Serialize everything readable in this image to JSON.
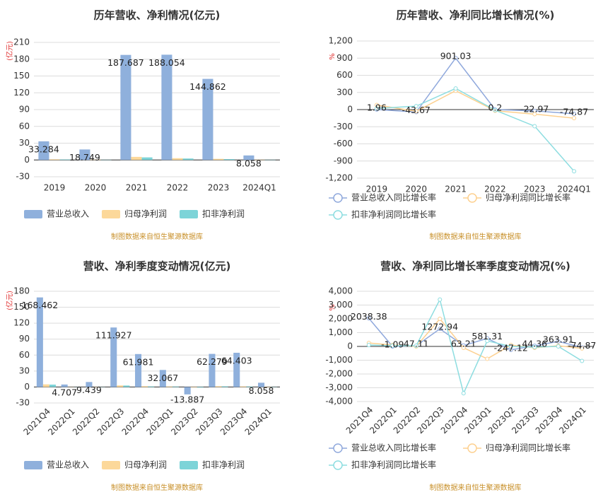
{
  "chart_data": [
    {
      "type": "bar",
      "title": "历年营收、净利情况(亿元)",
      "unit": "(亿元)",
      "categories": [
        "2019",
        "2020",
        "2021",
        "2022",
        "2023",
        "2024Q1"
      ],
      "series": [
        {
          "name": "营业总收入",
          "color": "#8fb0dc",
          "data_labels": true,
          "values": [
            33.284,
            18.749,
            187.687,
            188.054,
            144.862,
            8.058
          ]
        },
        {
          "name": "归母净利润",
          "color": "#fcd89a",
          "values": [
            1.2,
            0.6,
            5.5,
            3.2,
            2.0,
            0.5
          ]
        },
        {
          "name": "扣非净利润",
          "color": "#7dd4d8",
          "values": [
            0.9,
            0.4,
            4.6,
            2.6,
            1.5,
            0.4
          ]
        }
      ],
      "ylim": [
        -30,
        210
      ],
      "yticks": [
        -30,
        0,
        30,
        60,
        90,
        120,
        150,
        180,
        210
      ],
      "grid": true,
      "source": "制图数据来自恒生聚源数据库"
    },
    {
      "type": "line",
      "title": "历年营收、净利同比增长情况(%)",
      "unit": "%",
      "categories": [
        "2019",
        "2020",
        "2021",
        "2022",
        "2023",
        "2024Q1"
      ],
      "series": [
        {
          "name": "营业总收入同比增长率",
          "color": "#8fa8dc",
          "data_labels": true,
          "values": [
            1.96,
            -43.67,
            901.03,
            0.2,
            -22.97,
            -74.87
          ]
        },
        {
          "name": "归母净利润同比增长率",
          "color": "#fdd08f",
          "values": [
            80,
            -30,
            330,
            -20,
            -80,
            -150
          ]
        },
        {
          "name": "扣非净利润同比增长率",
          "color": "#8ddde0",
          "values": [
            20,
            60,
            370,
            -10,
            -290,
            -1080
          ]
        }
      ],
      "ylim": [
        -1200,
        1200
      ],
      "yticks": [
        {
          "value": -1200,
          "label": "-1,200"
        },
        -900,
        -600,
        -300,
        0,
        300,
        600,
        900,
        {
          "value": 1200,
          "label": "1,200"
        }
      ],
      "grid": true,
      "source": "制图数据来自恒生聚源数据库"
    },
    {
      "type": "bar",
      "title": "营收、净利季度变动情况(亿元)",
      "unit": "(亿元)",
      "categories": [
        "2021Q4",
        "2022Q1",
        "2022Q2",
        "2022Q3",
        "2022Q4",
        "2023Q1",
        "2023Q2",
        "2023Q3",
        "2023Q4",
        "2024Q1"
      ],
      "series": [
        {
          "name": "营业总收入",
          "color": "#8fb0dc",
          "data_labels": true,
          "values": [
            168.462,
            4.707,
            9.439,
            111.927,
            61.981,
            32.067,
            -13.887,
            62.279,
            64.403,
            8.058
          ]
        },
        {
          "name": "归母净利润",
          "color": "#fcd89a",
          "values": [
            5.0,
            0.3,
            0.4,
            3.0,
            1.5,
            1.0,
            -0.8,
            1.5,
            1.2,
            0.5
          ]
        },
        {
          "name": "扣非净利润",
          "color": "#7dd4d8",
          "values": [
            4.5,
            0.2,
            0.3,
            2.8,
            1.2,
            0.9,
            -1.0,
            1.3,
            1.0,
            0.4
          ]
        }
      ],
      "ylim": [
        -30,
        180
      ],
      "yticks": [
        -30,
        0,
        30,
        60,
        90,
        120,
        150,
        180
      ],
      "grid": true,
      "source": "制图数据来自恒生聚源数据库"
    },
    {
      "type": "line",
      "title": "营收、净利同比增长率季度变动情况(%)",
      "unit": "%",
      "categories": [
        "2021Q4",
        "2022Q1",
        "2022Q2",
        "2022Q3",
        "2022Q4",
        "2023Q1",
        "2023Q2",
        "2023Q3",
        "2023Q4",
        "2024Q1"
      ],
      "series": [
        {
          "name": "营业总收入同比增长率",
          "color": "#8fa8dc",
          "data_labels": true,
          "values": [
            2038.38,
            -1.09,
            47.11,
            1272.94,
            63.21,
            581.31,
            -247.12,
            44.36,
            363.91,
            -74.87
          ]
        },
        {
          "name": "归母净利润同比增长率",
          "color": "#fdd08f",
          "values": [
            250,
            100,
            0,
            2000,
            -100,
            -900,
            100,
            -100,
            50,
            -150
          ]
        },
        {
          "name": "扣非净利润同比增长率",
          "color": "#8ddde0",
          "values": [
            100,
            50,
            50,
            3400,
            -3400,
            400,
            0,
            -50,
            0,
            -1050
          ]
        }
      ],
      "ylim": [
        -4000,
        4000
      ],
      "yticks": [
        {
          "value": -4000,
          "label": "-4,000"
        },
        {
          "value": -3000,
          "label": "-3,000"
        },
        {
          "value": -2000,
          "label": "-2,000"
        },
        {
          "value": -1000,
          "label": "-1,000"
        },
        0,
        {
          "value": 1000,
          "label": "1,000"
        },
        {
          "value": 2000,
          "label": "2,000"
        },
        {
          "value": 3000,
          "label": "3,000"
        },
        {
          "value": 4000,
          "label": "4,000"
        }
      ],
      "grid": true,
      "source": "制图数据来自恒生聚源数据库"
    }
  ]
}
